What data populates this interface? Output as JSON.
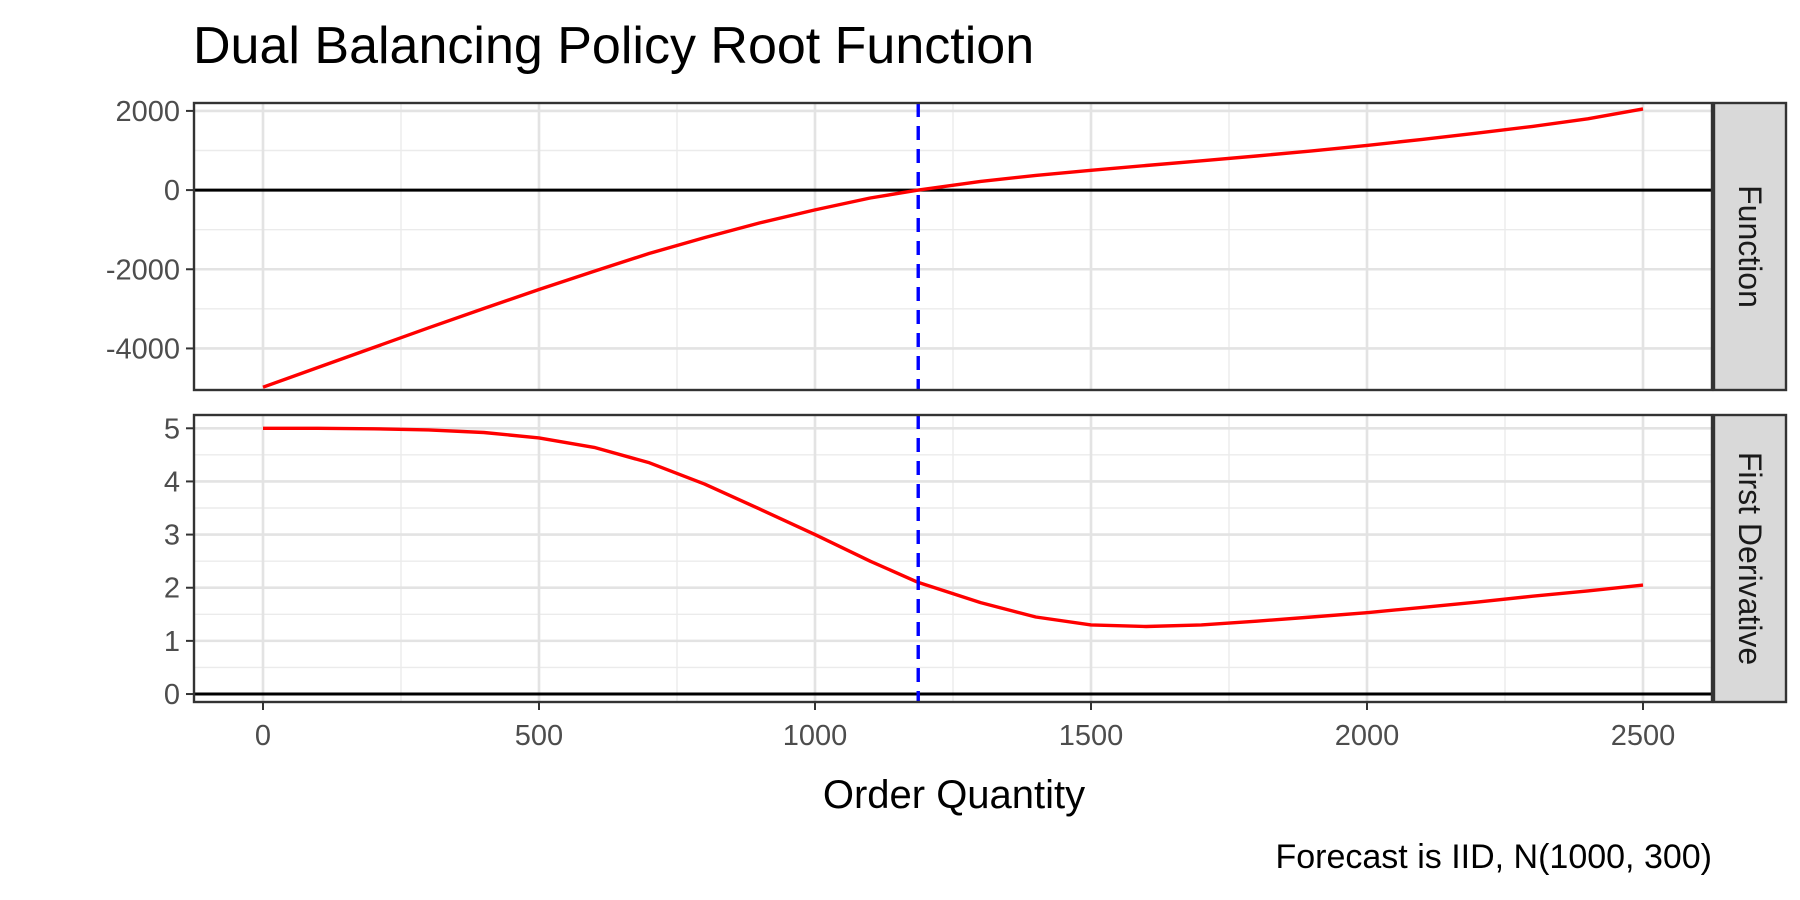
{
  "chart_data": {
    "type": "line",
    "title": "Dual Balancing Policy Root Function",
    "xlabel": "Order Quantity",
    "caption": "Forecast is IID, N(1000, 300)",
    "xlim": [
      -125,
      2625
    ],
    "x_ticks": [
      "0",
      "500",
      "1000",
      "1500",
      "2000",
      "2500"
    ],
    "x_tick_values": [
      0,
      500,
      1000,
      1500,
      2000,
      2500
    ],
    "vline": {
      "x": 1187,
      "style": "dashed",
      "color": "#0000ff"
    },
    "hline": {
      "y": 0,
      "color": "#000000"
    },
    "grid": true,
    "line_color": "#ff0000",
    "panels": [
      {
        "strip": "Function",
        "ylim": [
          -5050,
          2200
        ],
        "y_ticks": [
          "2000",
          "0",
          "-2000",
          "-4000"
        ],
        "y_tick_values": [
          2000,
          0,
          -2000,
          -4000
        ],
        "x": [
          0,
          100,
          200,
          300,
          400,
          500,
          600,
          700,
          800,
          900,
          1000,
          1100,
          1187,
          1300,
          1400,
          1500,
          1600,
          1700,
          1800,
          1900,
          2000,
          2100,
          2200,
          2300,
          2400,
          2500
        ],
        "values": [
          -4980,
          -4480,
          -3980,
          -3480,
          -2990,
          -2510,
          -2050,
          -1600,
          -1200,
          -830,
          -500,
          -200,
          0,
          220,
          370,
          500,
          620,
          740,
          860,
          990,
          1130,
          1280,
          1440,
          1610,
          1800,
          2050
        ]
      },
      {
        "strip": "First Derivative",
        "ylim": [
          -0.15,
          5.25
        ],
        "y_ticks": [
          "5",
          "4",
          "3",
          "2",
          "1",
          "0"
        ],
        "y_tick_values": [
          5,
          4,
          3,
          2,
          1,
          0
        ],
        "x": [
          0,
          100,
          200,
          300,
          400,
          500,
          600,
          700,
          800,
          900,
          1000,
          1100,
          1187,
          1300,
          1400,
          1500,
          1600,
          1700,
          1800,
          1900,
          2000,
          2100,
          2200,
          2300,
          2400,
          2500
        ],
        "values": [
          5.0,
          5.0,
          4.99,
          4.97,
          4.92,
          4.82,
          4.64,
          4.35,
          3.95,
          3.48,
          3.0,
          2.5,
          2.1,
          1.72,
          1.45,
          1.3,
          1.27,
          1.3,
          1.37,
          1.45,
          1.53,
          1.63,
          1.73,
          1.84,
          1.94,
          2.05
        ]
      }
    ]
  }
}
